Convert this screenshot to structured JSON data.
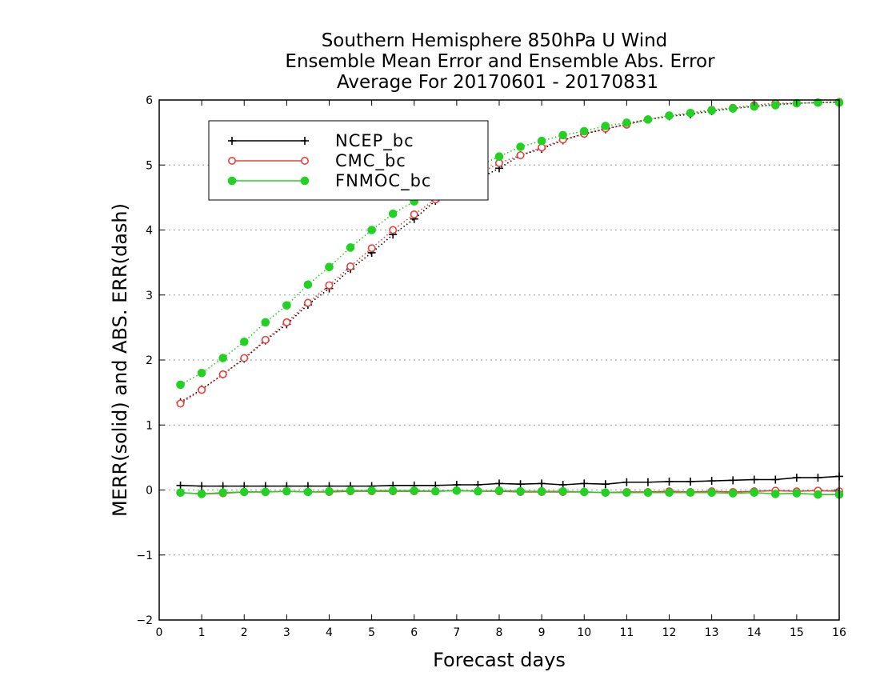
{
  "chart_data": {
    "type": "line",
    "title_lines": [
      "Southern Hemisphere 850hPa U Wind",
      "Ensemble Mean Error and Ensemble Abs. Error",
      "Average For 20170601 - 20170831"
    ],
    "xlabel": "Forecast days",
    "ylabel": "MERR(solid) and ABS. ERR(dash)",
    "xlim": [
      0,
      16
    ],
    "ylim": [
      -2,
      6
    ],
    "x_ticks": [
      "0",
      "1",
      "2",
      "3",
      "4",
      "5",
      "6",
      "7",
      "8",
      "9",
      "10",
      "11",
      "12",
      "13",
      "14",
      "15",
      "16"
    ],
    "y_ticks": [
      "−2",
      "−1",
      "0",
      "1",
      "2",
      "3",
      "4",
      "5",
      "6"
    ],
    "grid": "horizontal dotted",
    "legend_position": "top-left",
    "x": [
      0.5,
      1,
      1.5,
      2,
      2.5,
      3,
      3.5,
      4,
      4.5,
      5,
      5.5,
      6,
      6.5,
      7,
      7.5,
      8,
      8.5,
      9,
      9.5,
      10,
      10.5,
      11,
      11.5,
      12,
      12.5,
      13,
      13.5,
      14,
      14.5,
      15,
      15.5,
      16
    ],
    "series": [
      {
        "name": "NCEP_bc",
        "color": "#000000",
        "marker": "plus",
        "mean_error": [
          0.07,
          0.06,
          0.06,
          0.06,
          0.06,
          0.06,
          0.06,
          0.06,
          0.06,
          0.06,
          0.07,
          0.07,
          0.07,
          0.08,
          0.08,
          0.1,
          0.09,
          0.1,
          0.08,
          0.1,
          0.09,
          0.12,
          0.12,
          0.13,
          0.13,
          0.14,
          0.15,
          0.16,
          0.16,
          0.19,
          0.19,
          0.21
        ],
        "abs_error": [
          1.35,
          1.55,
          1.78,
          2.02,
          2.3,
          2.55,
          2.85,
          3.1,
          3.4,
          3.65,
          3.93,
          4.17,
          4.45,
          4.65,
          4.78,
          4.95,
          5.15,
          5.25,
          5.38,
          5.48,
          5.55,
          5.63,
          5.7,
          5.75,
          5.78,
          5.83,
          5.87,
          5.9,
          5.93,
          5.95,
          5.96,
          5.97
        ]
      },
      {
        "name": "CMC_bc",
        "color": "#e8413c",
        "marker": "open-circle",
        "mean_error": [
          -0.04,
          -0.06,
          -0.05,
          -0.03,
          -0.03,
          -0.02,
          -0.03,
          -0.03,
          -0.02,
          -0.02,
          -0.02,
          -0.02,
          -0.02,
          -0.01,
          -0.02,
          -0.02,
          -0.03,
          -0.03,
          -0.03,
          -0.03,
          -0.04,
          -0.03,
          -0.03,
          -0.02,
          -0.03,
          -0.02,
          -0.03,
          -0.02,
          -0.01,
          -0.02,
          -0.01,
          -0.02
        ],
        "abs_error": [
          1.33,
          1.54,
          1.78,
          2.03,
          2.31,
          2.58,
          2.88,
          3.15,
          3.44,
          3.72,
          4.0,
          4.24,
          4.47,
          4.68,
          4.85,
          5.03,
          5.15,
          5.27,
          5.39,
          5.48,
          5.56,
          5.62,
          5.7,
          5.76,
          5.8,
          5.85,
          5.88,
          5.92,
          5.95,
          5.95,
          5.96,
          5.97
        ]
      },
      {
        "name": "FNMOC_bc",
        "color": "#22d122",
        "marker": "filled-circle",
        "mean_error": [
          -0.04,
          -0.06,
          -0.04,
          -0.03,
          -0.03,
          -0.02,
          -0.03,
          -0.02,
          -0.01,
          -0.01,
          -0.01,
          -0.01,
          -0.02,
          -0.01,
          -0.02,
          -0.01,
          -0.02,
          -0.02,
          -0.02,
          -0.03,
          -0.04,
          -0.04,
          -0.04,
          -0.04,
          -0.04,
          -0.04,
          -0.05,
          -0.04,
          -0.06,
          -0.05,
          -0.07,
          -0.07
        ],
        "abs_error": [
          1.62,
          1.8,
          2.03,
          2.28,
          2.58,
          2.84,
          3.16,
          3.43,
          3.73,
          4.0,
          4.25,
          4.44,
          4.65,
          4.82,
          4.98,
          5.13,
          5.28,
          5.37,
          5.46,
          5.52,
          5.6,
          5.65,
          5.7,
          5.76,
          5.8,
          5.84,
          5.87,
          5.9,
          5.92,
          5.95,
          5.96,
          5.96
        ]
      }
    ]
  }
}
